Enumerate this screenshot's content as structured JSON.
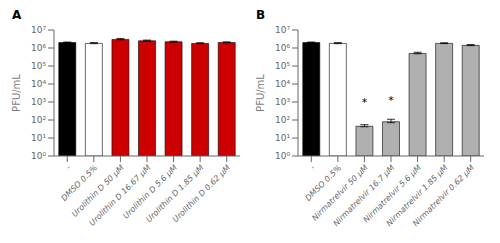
{
  "chart_data": [
    {
      "type": "bar",
      "title": "A",
      "categories": [
        "-",
        "DMSO 0.5%",
        "Urolithin D 50 μM",
        "Urolithin D 16.67 μM",
        "Urolithin D 5.6 μM",
        "Urolithin D 1.85 μM",
        "Urolithin D 0.62 μM"
      ],
      "values": [
        2000000,
        1800000,
        3000000,
        2500000,
        2200000,
        1800000,
        2000000
      ],
      "error_low": [
        45000,
        60000,
        120000,
        75000,
        60000,
        45000,
        60000
      ],
      "error_high": [
        150000,
        200000,
        400000,
        250000,
        200000,
        150000,
        200000
      ],
      "colors": [
        "#000000",
        "#ffffff",
        "#cc0000",
        "#cc0000",
        "#cc0000",
        "#cc0000",
        "#cc0000"
      ],
      "ylabel": "PFU/mL",
      "log": "y",
      "ylim": [
        1,
        10000000
      ],
      "yticks": [
        {
          "value": 1,
          "label": "10⁰"
        },
        {
          "value": 10,
          "label": "10¹"
        },
        {
          "value": 100,
          "label": "10²"
        },
        {
          "value": 1000,
          "label": "10³"
        },
        {
          "value": 10000,
          "label": "10⁴"
        },
        {
          "value": 100000,
          "label": "10⁵"
        },
        {
          "value": 1000000,
          "label": "10⁶"
        },
        {
          "value": 10000000,
          "label": "10⁷"
        }
      ]
    },
    {
      "type": "bar",
      "title": "B",
      "categories": [
        "-",
        "DMSO 0.5%",
        "Nirmatrelvir 50 μM",
        "Nirmatrelvir 16.7 μM",
        "Nirmatrelvir 5.6 μM",
        "Nirmatrelvir 1.85 μM",
        "Nirmatrelvir 0.62 μM"
      ],
      "values": [
        2000000,
        1800000,
        45,
        80,
        500000,
        1800000,
        1400000
      ],
      "error_low": [
        45000,
        60000,
        3,
        9,
        24000,
        45000,
        45000
      ],
      "error_high": [
        150000,
        200000,
        10,
        30,
        80000,
        150000,
        150000
      ],
      "colors": [
        "#000000",
        "#ffffff",
        "#b0b0b0",
        "#b0b0b0",
        "#b0b0b0",
        "#b0b0b0",
        "#b0b0b0"
      ],
      "ylabel": "PFU/mL",
      "log": "y",
      "ylim": [
        1,
        10000000
      ],
      "yticks": [
        {
          "value": 1,
          "label": "10⁰"
        },
        {
          "value": 10,
          "label": "10¹"
        },
        {
          "value": 100,
          "label": "10²"
        },
        {
          "value": 1000,
          "label": "10³"
        },
        {
          "value": 10000,
          "label": "10⁴"
        },
        {
          "value": 100000,
          "label": "10⁵"
        },
        {
          "value": 1000000,
          "label": "10⁶"
        },
        {
          "value": 10000000,
          "label": "10⁷"
        }
      ],
      "annotations": [
        {
          "text": "*",
          "x": "Nirmatrelvir 50 μM",
          "y": 300
        },
        {
          "text": "*",
          "x": "Nirmatrelvir 16.7 μM",
          "y": 400
        }
      ]
    }
  ]
}
